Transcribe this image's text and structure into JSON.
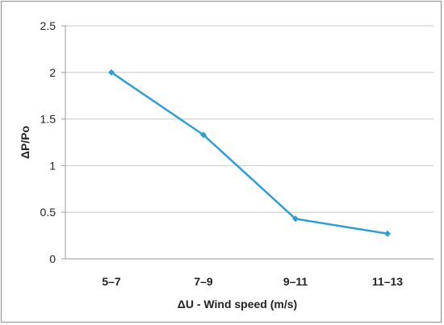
{
  "chart_data": {
    "type": "line",
    "categories": [
      "5–7",
      "7–9",
      "9–11",
      "11–13"
    ],
    "values": [
      2.0,
      1.33,
      0.43,
      0.27
    ],
    "xlabel": "ΔU - Wind speed  (m/s)",
    "ylabel": "ΔP/Po",
    "ylim": [
      0,
      2.5
    ],
    "yticks": [
      "0",
      "0.5",
      "1",
      "1.5",
      "2",
      "2.5"
    ],
    "grid": true,
    "line_color": "#2e9fd6",
    "grid_color": "#c8c8c8",
    "axis_color": "#9a9a9a"
  }
}
